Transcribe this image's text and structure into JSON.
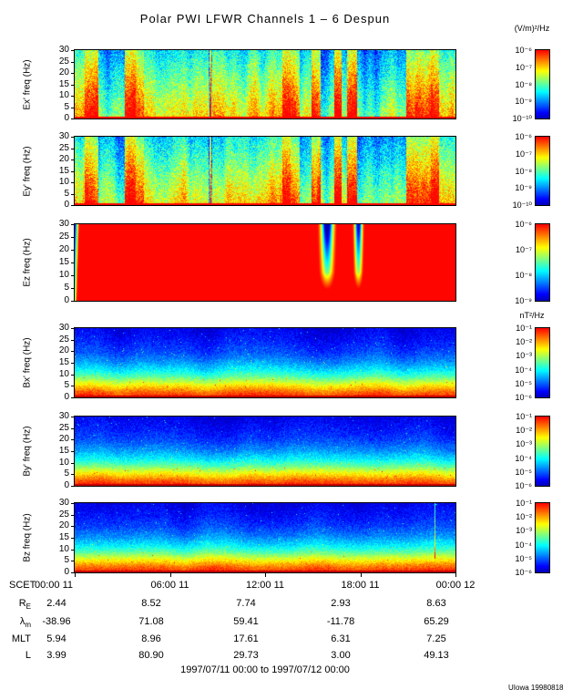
{
  "title": "Polar PWI LFWR Channels 1 – 6 Despun",
  "caption": "1997/07/11 00:00 to 1997/07/12 00:00",
  "credit": "UIowa 19980818",
  "colorbar_units": {
    "e": "(V/m)²/Hz",
    "b": "nT²/Hz"
  },
  "freq_ticks": [
    "30",
    "25",
    "20",
    "15",
    "10",
    "5",
    "0"
  ],
  "x_axis": {
    "prefix": "SCET",
    "ticks": [
      "00:00 11",
      "06:00 11",
      "12:00 11",
      "18:00 11",
      "00:00 12"
    ]
  },
  "panels": [
    {
      "id": "ex",
      "ylabel": "Ex' freq (Hz)",
      "colorbar": {
        "ticks": [
          "10⁻⁶",
          "10⁻⁷",
          "10⁻⁸",
          "10⁻⁹",
          "10⁻¹⁰"
        ]
      }
    },
    {
      "id": "ey",
      "ylabel": "Ey' freq (Hz)",
      "colorbar": {
        "ticks": [
          "10⁻⁶",
          "10⁻⁷",
          "10⁻⁸",
          "10⁻⁹",
          "10⁻¹⁰"
        ]
      }
    },
    {
      "id": "ez",
      "ylabel": "Ez freq (Hz)",
      "colorbar": {
        "ticks": [
          "10⁻⁶",
          "10⁻⁷",
          "10⁻⁸",
          "10⁻⁹"
        ]
      }
    },
    {
      "id": "bx",
      "ylabel": "Bx' freq (Hz)",
      "colorbar": {
        "ticks": [
          "10⁻¹",
          "10⁻²",
          "10⁻³",
          "10⁻⁴",
          "10⁻⁵",
          "10⁻⁶"
        ]
      }
    },
    {
      "id": "by",
      "ylabel": "By' freq (Hz)",
      "colorbar": {
        "ticks": [
          "10⁻¹",
          "10⁻²",
          "10⁻³",
          "10⁻⁴",
          "10⁻⁵",
          "10⁻⁶"
        ]
      }
    },
    {
      "id": "bz",
      "ylabel": "Bz freq (Hz)",
      "colorbar": {
        "ticks": [
          "10⁻¹",
          "10⁻²",
          "10⁻³",
          "10⁻⁴",
          "10⁻⁵",
          "10⁻⁶"
        ]
      }
    }
  ],
  "ephemeris": {
    "rows": [
      {
        "label": "R",
        "sub": "E",
        "values": [
          "2.44",
          "8.52",
          "7.74",
          "2.93",
          "8.63"
        ]
      },
      {
        "label": "λ",
        "sub": "m",
        "values": [
          "-38.96",
          "71.08",
          "59.41",
          "-11.78",
          "65.29"
        ]
      },
      {
        "label": "MLT",
        "sub": "",
        "values": [
          "5.94",
          "8.96",
          "17.61",
          "6.31",
          "7.25"
        ]
      },
      {
        "label": "L",
        "sub": "",
        "values": [
          "3.99",
          "80.90",
          "29.73",
          "3.00",
          "49.13"
        ]
      }
    ]
  },
  "chart_data": [
    {
      "type": "heatmap",
      "subtype": "spectrogram",
      "series": "Ex' despun electric field",
      "ylabel": "Ex' freq (Hz)",
      "ylim": [
        0,
        30
      ],
      "y_ticks": [
        0,
        5,
        10,
        15,
        20,
        25,
        30
      ],
      "x_ticks_scet": [
        "00:00 11",
        "06:00 11",
        "12:00 11",
        "18:00 11",
        "00:00 12"
      ],
      "time_range": "1997/07/11 00:00 to 1997/07/12 00:00",
      "color_units": "(V/m)²/Hz",
      "color_scale_log10": [
        -10,
        -6
      ],
      "colormap": "rainbow",
      "pattern": "intermittent broadband vertical bursts (yellow/red) over a blue-cyan background, strongest near 02:00, 13:00-17:00 and 21:00-23:00; persistent intense band below ~2 Hz"
    },
    {
      "type": "heatmap",
      "subtype": "spectrogram",
      "series": "Ey' despun electric field",
      "ylabel": "Ey' freq (Hz)",
      "ylim": [
        0,
        30
      ],
      "y_ticks": [
        0,
        5,
        10,
        15,
        20,
        25,
        30
      ],
      "x_ticks_scet": [
        "00:00 11",
        "06:00 11",
        "12:00 11",
        "18:00 11",
        "00:00 12"
      ],
      "time_range": "1997/07/11 00:00 to 1997/07/12 00:00",
      "color_units": "(V/m)²/Hz",
      "color_scale_log10": [
        -10,
        -6
      ],
      "colormap": "rainbow",
      "pattern": "burst structure nearly identical to Ex' panel"
    },
    {
      "type": "heatmap",
      "subtype": "spectrogram",
      "series": "Ez electric field",
      "ylabel": "Ez freq (Hz)",
      "ylim": [
        0,
        30
      ],
      "y_ticks": [
        0,
        5,
        10,
        15,
        20,
        25,
        30
      ],
      "x_ticks_scet": [
        "00:00 11",
        "06:00 11",
        "12:00 11",
        "18:00 11",
        "00:00 12"
      ],
      "time_range": "1997/07/11 00:00 to 1997/07/12 00:00",
      "color_units": "(V/m)²/Hz",
      "color_scale_log10": [
        -9,
        -6
      ],
      "colormap": "rainbow",
      "pattern": "saturated red (≥10⁻⁶) at essentially all times and frequencies; brief dropouts near ~16:00 and ~17:45 where upper frequencies fall toward 10⁻⁹; short ramp-up at interval start"
    },
    {
      "type": "heatmap",
      "subtype": "spectrogram",
      "series": "Bx' despun magnetic field",
      "ylabel": "Bx' freq (Hz)",
      "ylim": [
        0,
        30
      ],
      "y_ticks": [
        0,
        5,
        10,
        15,
        20,
        25,
        30
      ],
      "x_ticks_scet": [
        "00:00 11",
        "06:00 11",
        "12:00 11",
        "18:00 11",
        "00:00 12"
      ],
      "time_range": "1997/07/11 00:00 to 1997/07/12 00:00",
      "color_units": "nT²/Hz",
      "color_scale_log10": [
        -6,
        -1
      ],
      "colormap": "rainbow",
      "pattern": "smooth horizontally-banded spectrum: intense red below ~4 Hz, yellow 4-6 Hz, green 6-12 Hz, fading to blue speckle above ~15 Hz, steady across the day"
    },
    {
      "type": "heatmap",
      "subtype": "spectrogram",
      "series": "By' despun magnetic field",
      "ylabel": "By' freq (Hz)",
      "ylim": [
        0,
        30
      ],
      "y_ticks": [
        0,
        5,
        10,
        15,
        20,
        25,
        30
      ],
      "x_ticks_scet": [
        "00:00 11",
        "06:00 11",
        "12:00 11",
        "18:00 11",
        "00:00 12"
      ],
      "time_range": "1997/07/11 00:00 to 1997/07/12 00:00",
      "color_units": "nT²/Hz",
      "color_scale_log10": [
        -6,
        -1
      ],
      "colormap": "rainbow",
      "pattern": "same banded falloff with frequency as Bx' panel"
    },
    {
      "type": "heatmap",
      "subtype": "spectrogram",
      "series": "Bz magnetic field",
      "ylabel": "Bz freq (Hz)",
      "ylim": [
        0,
        30
      ],
      "y_ticks": [
        0,
        5,
        10,
        15,
        20,
        25,
        30
      ],
      "x_ticks_scet": [
        "00:00 11",
        "06:00 11",
        "12:00 11",
        "18:00 11",
        "00:00 12"
      ],
      "time_range": "1997/07/11 00:00 to 1997/07/12 00:00",
      "color_units": "nT²/Hz",
      "color_scale_log10": [
        -6,
        -1
      ],
      "colormap": "rainbow",
      "pattern": "same banded falloff as Bx'/By' with a faint narrow vertical enhancement near ~22:40"
    }
  ]
}
